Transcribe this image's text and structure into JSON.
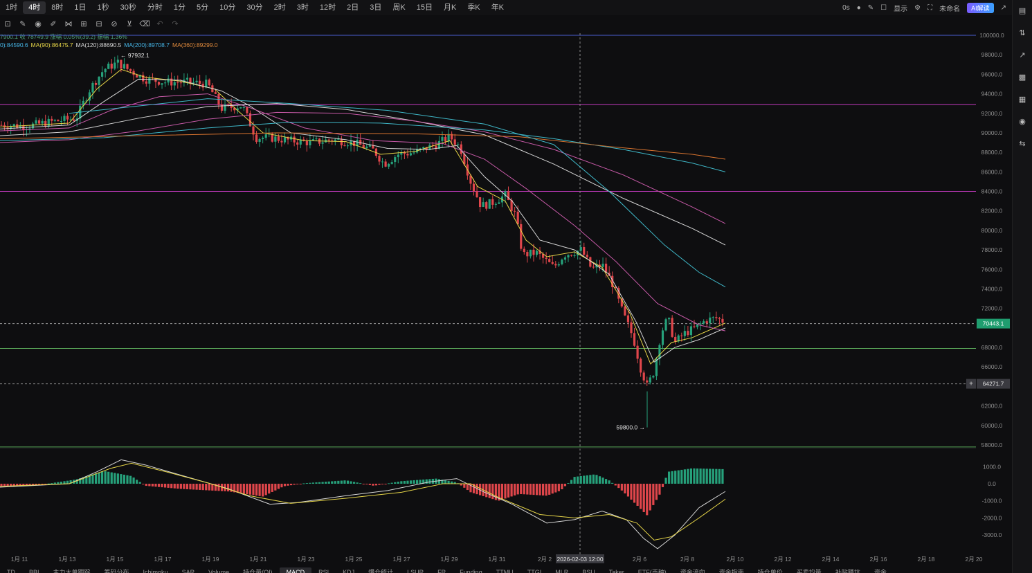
{
  "timeframes": [
    "1时",
    "4时",
    "8时",
    "1日",
    "1秒",
    "30秒",
    "分时",
    "1分",
    "5分",
    "10分",
    "30分",
    "2时",
    "3时",
    "12时",
    "2日",
    "3日",
    "周K",
    "15日",
    "月K",
    "季K",
    "年K"
  ],
  "active_timeframe": "4时",
  "top_right": {
    "countdown": "0s",
    "display_label": "显示",
    "layout_name": "未命名",
    "ai_label": "AI解读"
  },
  "toolbar_icons": [
    "crop-icon",
    "pencil-icon",
    "alert-icon",
    "brush-icon",
    "pattern-icon",
    "lock-icon",
    "eraser-icon",
    "magnet-icon",
    "filter-icon",
    "trash-icon",
    "undo-icon",
    "redo-icon"
  ],
  "legend": {
    "ohlc_text": "7900.1 收 78749.9 涨幅 0.05%(39.2) 振幅 1.36%",
    "ma_items": [
      {
        "text": "0):84590.6",
        "color": "#46b5e6"
      },
      {
        "text": "MA(90):86475.7",
        "color": "#e6d548"
      },
      {
        "text": "MA(120):88690.5",
        "color": "#d7d7d7"
      },
      {
        "text": "MA(200):89708.7",
        "color": "#46b5e6"
      },
      {
        "text": "MA(360):89299.0",
        "color": "#e08a3c"
      }
    ]
  },
  "price_axis": [
    "100000.0",
    "98000.0",
    "96000.0",
    "94000.0",
    "92000.0",
    "90000.0",
    "88000.0",
    "86000.0",
    "84000.0",
    "82000.0",
    "80000.0",
    "78000.0",
    "76000.0",
    "74000.0",
    "72000.0",
    "70443.1",
    "68000.0",
    "66000.0",
    "64271.7",
    "62000.0",
    "60000.0",
    "58000.0"
  ],
  "current_price": "70443.1",
  "crosshair_price": "64271.7",
  "high_label": "← 97932.1",
  "low_label": "59800.0 →",
  "macd_axis": [
    "1000.0",
    "0.0",
    "-1000.0",
    "-2000.0",
    "-3000.0"
  ],
  "date_axis": [
    "1月 11",
    "1月 13",
    "1月 15",
    "1月 17",
    "1月 19",
    "1月 21",
    "1月 23",
    "1月 25",
    "1月 27",
    "1月 29",
    "1月 31",
    "2月 2",
    "2月 6",
    "2月 8",
    "2月 10",
    "2月 12",
    "2月 14",
    "2月 16",
    "2月 18",
    "2月 20"
  ],
  "crosshair_time": "2026-02-03 12:00",
  "bottom_tabs": [
    "TD",
    "BBI",
    "主力大单跟踪",
    "筹码分布",
    "Ichimoku",
    "SAR",
    "Volume",
    "持仓量(OI)",
    "MACD",
    "RSI",
    "KDJ",
    "爆仓统计",
    "LSUR",
    "FR",
    "Funding",
    "TTMU",
    "TTGI",
    "MLR",
    "BSU",
    "Taker",
    "ETF(币种)",
    "资金流向",
    "资金指南",
    "持仓单价",
    "买卖均量",
    "补贴蹲坑",
    "资金"
  ],
  "active_bottom_tab": "MACD",
  "colors": {
    "up": "#26a17b",
    "down": "#e0464b",
    "accent_current": "#1f9d6f",
    "ma_yellow": "#e6d548",
    "ma_white": "#d7d7d7",
    "ma_pink": "#c85aa8",
    "ma_cyan": "#3fb8c8",
    "ma_orange": "#d9742f",
    "hline_magenta": "#c43ac0",
    "hline_green": "#5aa85a",
    "hline_blue": "#4a5fd0"
  }
}
